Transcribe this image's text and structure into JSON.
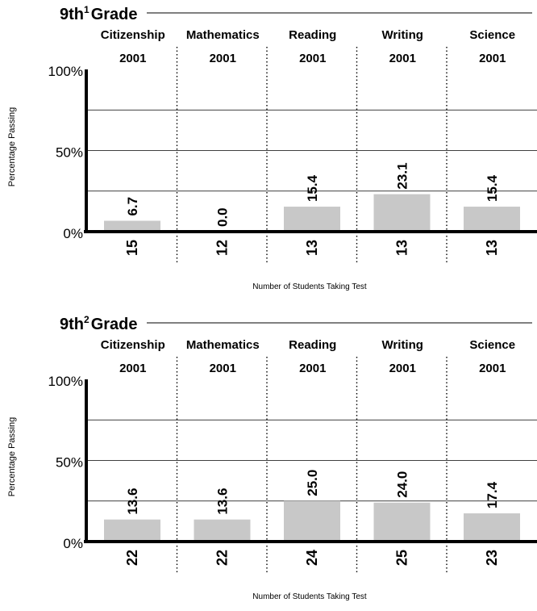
{
  "chart_data": [
    {
      "type": "bar",
      "title": "9th",
      "title_superscript": "1",
      "title_suffix": "Grade",
      "ylabel": "Percentage Passing",
      "xlabel": "Number of Students Taking Test",
      "ylim": [
        0,
        100
      ],
      "yticks": [
        "0%",
        "50%",
        "100%"
      ],
      "gridlines": [
        25,
        50,
        75
      ],
      "categories": [
        "Citizenship",
        "Mathematics",
        "Reading",
        "Writing",
        "Science"
      ],
      "years": [
        "2001",
        "2001",
        "2001",
        "2001",
        "2001"
      ],
      "values": [
        6.7,
        0.0,
        15.4,
        23.1,
        15.4
      ],
      "value_labels": [
        "6.7",
        "0.0",
        "15.4",
        "23.1",
        "15.4"
      ],
      "students": [
        "15",
        "12",
        "13",
        "13",
        "13"
      ],
      "bar_color": "#c8c8c8"
    },
    {
      "type": "bar",
      "title": "9th",
      "title_superscript": "2",
      "title_suffix": "Grade",
      "ylabel": "Percentage Passing",
      "xlabel": "Number of Students Taking Test",
      "ylim": [
        0,
        100
      ],
      "yticks": [
        "0%",
        "50%",
        "100%"
      ],
      "gridlines": [
        25,
        50,
        75
      ],
      "categories": [
        "Citizenship",
        "Mathematics",
        "Reading",
        "Writing",
        "Science"
      ],
      "years": [
        "2001",
        "2001",
        "2001",
        "2001",
        "2001"
      ],
      "values": [
        13.6,
        13.6,
        25.0,
        24.0,
        17.4
      ],
      "value_labels": [
        "13.6",
        "13.6",
        "25.0",
        "24.0",
        "17.4"
      ],
      "students": [
        "22",
        "22",
        "24",
        "25",
        "23"
      ],
      "bar_color": "#c8c8c8"
    }
  ]
}
